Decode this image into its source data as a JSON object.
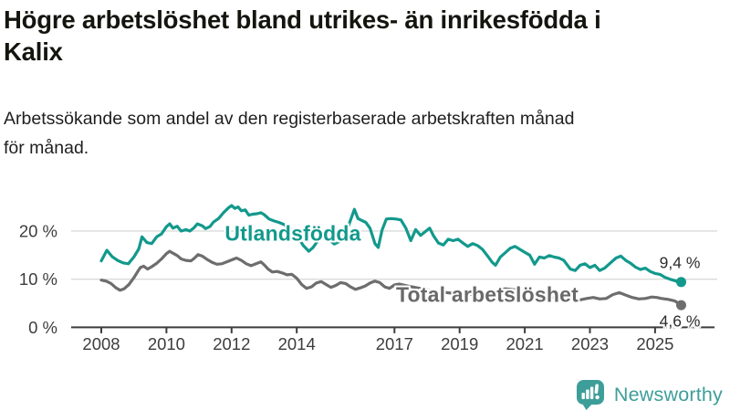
{
  "header": {
    "title": "Högre arbetslöshet bland utrikes- än inrikesfödda i Kalix",
    "title_lines": [
      "Högre arbetslöshet bland utrikes- än inrikesfödda i",
      "Kalix"
    ],
    "subtitle": "Arbetssökande som andel av den registerbaserade arbetskraften månad för månad.",
    "subtitle_lines": [
      "Arbetssökande som andel av den registerbaserade arbetskraften månad",
      "för månad."
    ]
  },
  "footer": {
    "brand": "Newsworthy",
    "logo_icon": "speech-bubble-bar-chart"
  },
  "colors": {
    "series_utlandsfodda": "#12998c",
    "series_total": "#6d6d6d",
    "total_label": "#696969",
    "axis": "#3d3d3d",
    "grid": "#dadada",
    "end_label_text": "#2d2d2d",
    "brand_teal": "#3d9e99",
    "background": "#ffffff"
  },
  "chart_data": {
    "type": "line",
    "title": "Högre arbetslöshet bland utrikes- än inrikesfödda i Kalix",
    "subtitle": "Arbetssökande som andel av den registerbaserade arbetskraften månad för månad.",
    "unit": "%",
    "grid": "horizontal",
    "legend_position": "inline-labels",
    "ylim": [
      0,
      26
    ],
    "xlim": [
      2007.1,
      2026.9
    ],
    "y_ticks": [
      {
        "value": 0,
        "label": "0 %"
      },
      {
        "value": 10,
        "label": "10 %"
      },
      {
        "value": 20,
        "label": "20 %"
      }
    ],
    "x_ticks": [
      {
        "value": 2008,
        "label": "2008"
      },
      {
        "value": 2010,
        "label": "2010"
      },
      {
        "value": 2012,
        "label": "2012"
      },
      {
        "value": 2014,
        "label": "2014"
      },
      {
        "value": 2017,
        "label": "2017"
      },
      {
        "value": 2019,
        "label": "2019"
      },
      {
        "value": 2021,
        "label": "2021"
      },
      {
        "value": 2023,
        "label": "2023"
      },
      {
        "value": 2025,
        "label": "2025"
      }
    ],
    "series": [
      {
        "name": "Utlandsfödda",
        "color": "#12998c",
        "end_label": "9,4 %",
        "end_value": 9.4,
        "points": [
          [
            2008.0,
            13.8
          ],
          [
            2008.17,
            16.0
          ],
          [
            2008.33,
            14.7
          ],
          [
            2008.5,
            13.9
          ],
          [
            2008.67,
            13.4
          ],
          [
            2008.83,
            13.2
          ],
          [
            2009.0,
            14.6
          ],
          [
            2009.15,
            16.3
          ],
          [
            2009.25,
            18.8
          ],
          [
            2009.4,
            17.6
          ],
          [
            2009.55,
            17.4
          ],
          [
            2009.7,
            18.8
          ],
          [
            2009.85,
            19.4
          ],
          [
            2010.0,
            20.9
          ],
          [
            2010.1,
            21.5
          ],
          [
            2010.2,
            20.6
          ],
          [
            2010.33,
            21.0
          ],
          [
            2010.45,
            20.0
          ],
          [
            2010.6,
            20.3
          ],
          [
            2010.72,
            20.0
          ],
          [
            2010.85,
            20.7
          ],
          [
            2010.95,
            21.5
          ],
          [
            2011.1,
            21.1
          ],
          [
            2011.2,
            20.5
          ],
          [
            2011.33,
            20.9
          ],
          [
            2011.45,
            21.9
          ],
          [
            2011.6,
            22.6
          ],
          [
            2011.75,
            23.8
          ],
          [
            2011.9,
            24.8
          ],
          [
            2012.0,
            25.3
          ],
          [
            2012.1,
            24.7
          ],
          [
            2012.2,
            25.0
          ],
          [
            2012.3,
            24.2
          ],
          [
            2012.42,
            24.4
          ],
          [
            2012.53,
            23.3
          ],
          [
            2012.65,
            23.5
          ],
          [
            2012.78,
            23.6
          ],
          [
            2012.9,
            23.8
          ],
          [
            2013.0,
            23.4
          ],
          [
            2013.15,
            22.5
          ],
          [
            2013.3,
            22.1
          ],
          [
            2013.45,
            21.8
          ],
          [
            2013.6,
            21.4
          ],
          [
            2013.75,
            20.8
          ],
          [
            2013.9,
            20.0
          ],
          [
            2014.05,
            18.6
          ],
          [
            2014.2,
            17.0
          ],
          [
            2014.37,
            15.8
          ],
          [
            2014.5,
            16.6
          ],
          [
            2014.65,
            18.0
          ],
          [
            2014.8,
            18.8
          ],
          [
            2015.0,
            18.2
          ],
          [
            2015.15,
            17.3
          ],
          [
            2015.3,
            17.8
          ],
          [
            2015.45,
            19.2
          ],
          [
            2015.6,
            21.3
          ],
          [
            2015.77,
            24.5
          ],
          [
            2015.88,
            22.6
          ],
          [
            2016.0,
            22.2
          ],
          [
            2016.12,
            21.8
          ],
          [
            2016.25,
            20.6
          ],
          [
            2016.4,
            17.4
          ],
          [
            2016.5,
            16.6
          ],
          [
            2016.62,
            20.2
          ],
          [
            2016.75,
            22.5
          ],
          [
            2016.9,
            22.6
          ],
          [
            2017.05,
            22.5
          ],
          [
            2017.2,
            22.3
          ],
          [
            2017.35,
            20.6
          ],
          [
            2017.5,
            18.0
          ],
          [
            2017.65,
            20.3
          ],
          [
            2017.8,
            19.1
          ],
          [
            2017.95,
            19.9
          ],
          [
            2018.08,
            20.6
          ],
          [
            2018.2,
            19.0
          ],
          [
            2018.35,
            17.5
          ],
          [
            2018.5,
            17.1
          ],
          [
            2018.65,
            18.3
          ],
          [
            2018.8,
            18.0
          ],
          [
            2018.95,
            18.3
          ],
          [
            2019.1,
            17.5
          ],
          [
            2019.25,
            16.8
          ],
          [
            2019.4,
            17.4
          ],
          [
            2019.55,
            17.0
          ],
          [
            2019.7,
            16.2
          ],
          [
            2019.85,
            14.9
          ],
          [
            2020.0,
            13.5
          ],
          [
            2020.1,
            12.9
          ],
          [
            2020.25,
            14.6
          ],
          [
            2020.4,
            15.5
          ],
          [
            2020.55,
            16.4
          ],
          [
            2020.7,
            16.8
          ],
          [
            2020.85,
            16.2
          ],
          [
            2021.0,
            15.6
          ],
          [
            2021.15,
            15.0
          ],
          [
            2021.3,
            13.1
          ],
          [
            2021.45,
            14.6
          ],
          [
            2021.6,
            14.4
          ],
          [
            2021.75,
            14.9
          ],
          [
            2021.9,
            14.6
          ],
          [
            2022.05,
            14.4
          ],
          [
            2022.2,
            13.9
          ],
          [
            2022.4,
            12.1
          ],
          [
            2022.55,
            11.8
          ],
          [
            2022.7,
            12.9
          ],
          [
            2022.85,
            13.2
          ],
          [
            2023.0,
            12.4
          ],
          [
            2023.15,
            12.9
          ],
          [
            2023.3,
            11.8
          ],
          [
            2023.45,
            12.3
          ],
          [
            2023.6,
            13.2
          ],
          [
            2023.8,
            14.4
          ],
          [
            2023.95,
            14.8
          ],
          [
            2024.1,
            13.9
          ],
          [
            2024.25,
            13.3
          ],
          [
            2024.4,
            12.5
          ],
          [
            2024.55,
            12.0
          ],
          [
            2024.7,
            12.3
          ],
          [
            2024.85,
            11.6
          ],
          [
            2025.0,
            11.2
          ],
          [
            2025.15,
            11.0
          ],
          [
            2025.3,
            10.4
          ],
          [
            2025.5,
            9.9
          ],
          [
            2025.65,
            9.6
          ],
          [
            2025.8,
            9.4
          ]
        ]
      },
      {
        "name": "Total arbetslöshet",
        "color": "#6d6d6d",
        "end_label": "4,6 %",
        "end_value": 4.6,
        "points": [
          [
            2008.0,
            9.8
          ],
          [
            2008.15,
            9.6
          ],
          [
            2008.3,
            9.1
          ],
          [
            2008.45,
            8.2
          ],
          [
            2008.58,
            7.7
          ],
          [
            2008.7,
            8.0
          ],
          [
            2008.85,
            8.9
          ],
          [
            2009.0,
            10.3
          ],
          [
            2009.1,
            11.4
          ],
          [
            2009.2,
            12.4
          ],
          [
            2009.3,
            12.7
          ],
          [
            2009.42,
            12.1
          ],
          [
            2009.55,
            12.6
          ],
          [
            2009.7,
            13.3
          ],
          [
            2009.85,
            14.2
          ],
          [
            2010.0,
            15.3
          ],
          [
            2010.1,
            15.8
          ],
          [
            2010.2,
            15.4
          ],
          [
            2010.33,
            14.9
          ],
          [
            2010.45,
            14.2
          ],
          [
            2010.6,
            13.9
          ],
          [
            2010.75,
            13.8
          ],
          [
            2010.85,
            14.3
          ],
          [
            2010.97,
            15.1
          ],
          [
            2011.1,
            14.8
          ],
          [
            2011.25,
            14.1
          ],
          [
            2011.4,
            13.5
          ],
          [
            2011.55,
            13.1
          ],
          [
            2011.7,
            13.2
          ],
          [
            2011.85,
            13.6
          ],
          [
            2012.0,
            14.0
          ],
          [
            2012.15,
            14.4
          ],
          [
            2012.3,
            13.9
          ],
          [
            2012.45,
            13.2
          ],
          [
            2012.6,
            12.8
          ],
          [
            2012.75,
            13.2
          ],
          [
            2012.9,
            13.6
          ],
          [
            2013.0,
            13.0
          ],
          [
            2013.12,
            12.1
          ],
          [
            2013.25,
            11.5
          ],
          [
            2013.4,
            11.6
          ],
          [
            2013.55,
            11.3
          ],
          [
            2013.7,
            10.9
          ],
          [
            2013.85,
            11.0
          ],
          [
            2014.0,
            10.2
          ],
          [
            2014.15,
            8.9
          ],
          [
            2014.3,
            8.1
          ],
          [
            2014.45,
            8.4
          ],
          [
            2014.6,
            9.2
          ],
          [
            2014.75,
            9.5
          ],
          [
            2014.9,
            8.9
          ],
          [
            2015.05,
            8.3
          ],
          [
            2015.2,
            8.7
          ],
          [
            2015.35,
            9.3
          ],
          [
            2015.5,
            9.1
          ],
          [
            2015.65,
            8.4
          ],
          [
            2015.8,
            7.9
          ],
          [
            2015.95,
            8.2
          ],
          [
            2016.1,
            8.6
          ],
          [
            2016.25,
            9.2
          ],
          [
            2016.4,
            9.6
          ],
          [
            2016.55,
            9.3
          ],
          [
            2016.7,
            8.4
          ],
          [
            2016.85,
            8.1
          ],
          [
            2017.0,
            8.8
          ],
          [
            2017.15,
            9.0
          ],
          [
            2017.4,
            8.6
          ],
          [
            2017.7,
            8.2
          ],
          [
            2018.0,
            7.8
          ],
          [
            2018.3,
            7.4
          ],
          [
            2018.6,
            7.2
          ],
          [
            2018.9,
            7.0
          ],
          [
            2019.2,
            6.9
          ],
          [
            2019.5,
            6.8
          ],
          [
            2019.8,
            6.9
          ],
          [
            2020.1,
            7.4
          ],
          [
            2020.4,
            8.0
          ],
          [
            2020.7,
            7.8
          ],
          [
            2021.0,
            7.4
          ],
          [
            2021.3,
            7.0
          ],
          [
            2021.6,
            6.6
          ],
          [
            2021.9,
            6.2
          ],
          [
            2022.2,
            5.9
          ],
          [
            2022.5,
            5.6
          ],
          [
            2022.7,
            5.7
          ],
          [
            2022.9,
            6.0
          ],
          [
            2023.1,
            6.2
          ],
          [
            2023.3,
            5.9
          ],
          [
            2023.5,
            6.0
          ],
          [
            2023.7,
            6.8
          ],
          [
            2023.9,
            7.2
          ],
          [
            2024.1,
            6.7
          ],
          [
            2024.3,
            6.2
          ],
          [
            2024.5,
            5.9
          ],
          [
            2024.7,
            6.0
          ],
          [
            2024.9,
            6.3
          ],
          [
            2025.05,
            6.2
          ],
          [
            2025.2,
            6.0
          ],
          [
            2025.4,
            5.8
          ],
          [
            2025.6,
            5.5
          ],
          [
            2025.8,
            4.6
          ]
        ]
      }
    ]
  }
}
